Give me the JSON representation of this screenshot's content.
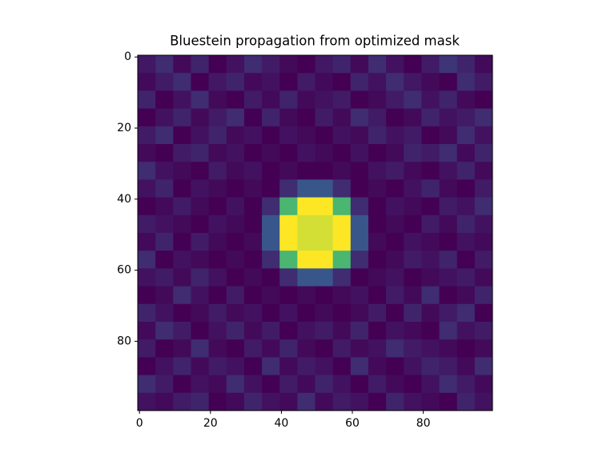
{
  "chart_data": {
    "type": "heatmap",
    "title": "Bluestein propagation from optimized mask",
    "colormap": "viridis",
    "x": [
      2,
      7,
      12,
      17,
      22,
      27,
      32,
      37,
      42,
      47,
      52,
      57,
      62,
      67,
      72,
      77,
      82,
      87,
      92,
      97
    ],
    "y": [
      2,
      7,
      12,
      17,
      22,
      27,
      32,
      37,
      42,
      47,
      52,
      57,
      62,
      67,
      72,
      77,
      82,
      87,
      92,
      97
    ],
    "xlim": [
      -0.5,
      99.5
    ],
    "ylim": [
      99.5,
      -0.5
    ],
    "xticks": [
      0,
      20,
      40,
      60,
      80
    ],
    "yticks": [
      0,
      20,
      40,
      60,
      80
    ],
    "z": [
      [
        0.15,
        0.2,
        0.12,
        0.18,
        0.1,
        0.14,
        0.2,
        0.16,
        0.12,
        0.1,
        0.15,
        0.18,
        0.12,
        0.2,
        0.14,
        0.1,
        0.16,
        0.22,
        0.18,
        0.12
      ],
      [
        0.12,
        0.16,
        0.2,
        0.1,
        0.15,
        0.18,
        0.12,
        0.14,
        0.1,
        0.16,
        0.12,
        0.1,
        0.18,
        0.14,
        0.2,
        0.15,
        0.12,
        0.1,
        0.2,
        0.16
      ],
      [
        0.18,
        0.1,
        0.14,
        0.2,
        0.12,
        0.1,
        0.16,
        0.12,
        0.18,
        0.12,
        0.14,
        0.16,
        0.1,
        0.12,
        0.16,
        0.2,
        0.14,
        0.18,
        0.12,
        0.1
      ],
      [
        0.1,
        0.14,
        0.18,
        0.12,
        0.16,
        0.2,
        0.1,
        0.18,
        0.12,
        0.1,
        0.16,
        0.12,
        0.2,
        0.16,
        0.1,
        0.12,
        0.18,
        0.14,
        0.16,
        0.2
      ],
      [
        0.16,
        0.2,
        0.1,
        0.14,
        0.18,
        0.12,
        0.14,
        0.1,
        0.14,
        0.12,
        0.1,
        0.14,
        0.12,
        0.18,
        0.14,
        0.16,
        0.1,
        0.12,
        0.2,
        0.14
      ],
      [
        0.12,
        0.1,
        0.16,
        0.18,
        0.12,
        0.14,
        0.1,
        0.12,
        0.1,
        0.14,
        0.12,
        0.1,
        0.14,
        0.1,
        0.12,
        0.18,
        0.16,
        0.2,
        0.12,
        0.18
      ],
      [
        0.2,
        0.14,
        0.12,
        0.1,
        0.16,
        0.12,
        0.14,
        0.1,
        0.12,
        0.1,
        0.1,
        0.12,
        0.1,
        0.14,
        0.16,
        0.12,
        0.1,
        0.14,
        0.18,
        0.12
      ],
      [
        0.14,
        0.18,
        0.1,
        0.14,
        0.12,
        0.1,
        0.12,
        0.1,
        0.2,
        0.3,
        0.3,
        0.2,
        0.1,
        0.12,
        0.1,
        0.14,
        0.18,
        0.12,
        0.1,
        0.16
      ],
      [
        0.1,
        0.12,
        0.16,
        0.12,
        0.1,
        0.14,
        0.1,
        0.2,
        0.6,
        0.85,
        0.85,
        0.6,
        0.2,
        0.1,
        0.14,
        0.12,
        0.1,
        0.16,
        0.14,
        0.2
      ],
      [
        0.16,
        0.14,
        0.12,
        0.1,
        0.14,
        0.12,
        0.1,
        0.3,
        0.85,
        0.8,
        0.8,
        0.85,
        0.3,
        0.1,
        0.12,
        0.1,
        0.16,
        0.12,
        0.18,
        0.14
      ],
      [
        0.12,
        0.18,
        0.1,
        0.16,
        0.12,
        0.1,
        0.12,
        0.3,
        0.85,
        0.8,
        0.8,
        0.85,
        0.3,
        0.12,
        0.1,
        0.14,
        0.12,
        0.1,
        0.14,
        0.12
      ],
      [
        0.2,
        0.1,
        0.14,
        0.12,
        0.1,
        0.12,
        0.1,
        0.2,
        0.6,
        0.85,
        0.85,
        0.6,
        0.2,
        0.1,
        0.12,
        0.16,
        0.14,
        0.18,
        0.1,
        0.16
      ],
      [
        0.14,
        0.16,
        0.12,
        0.18,
        0.14,
        0.1,
        0.12,
        0.1,
        0.2,
        0.3,
        0.3,
        0.2,
        0.1,
        0.12,
        0.14,
        0.1,
        0.12,
        0.14,
        0.16,
        0.12
      ],
      [
        0.1,
        0.12,
        0.2,
        0.14,
        0.1,
        0.16,
        0.1,
        0.12,
        0.1,
        0.12,
        0.1,
        0.12,
        0.14,
        0.1,
        0.16,
        0.12,
        0.2,
        0.1,
        0.12,
        0.18
      ],
      [
        0.18,
        0.14,
        0.1,
        0.12,
        0.16,
        0.12,
        0.14,
        0.1,
        0.14,
        0.1,
        0.12,
        0.1,
        0.12,
        0.16,
        0.1,
        0.18,
        0.12,
        0.16,
        0.2,
        0.1
      ],
      [
        0.12,
        0.2,
        0.16,
        0.1,
        0.14,
        0.18,
        0.12,
        0.16,
        0.1,
        0.14,
        0.16,
        0.12,
        0.18,
        0.1,
        0.14,
        0.12,
        0.1,
        0.2,
        0.14,
        0.16
      ],
      [
        0.16,
        0.1,
        0.12,
        0.2,
        0.12,
        0.1,
        0.16,
        0.12,
        0.18,
        0.12,
        0.1,
        0.16,
        0.12,
        0.14,
        0.2,
        0.16,
        0.14,
        0.12,
        0.1,
        0.12
      ],
      [
        0.1,
        0.14,
        0.18,
        0.12,
        0.16,
        0.14,
        0.1,
        0.2,
        0.12,
        0.16,
        0.14,
        0.1,
        0.2,
        0.12,
        0.1,
        0.14,
        0.18,
        0.16,
        0.12,
        0.2
      ],
      [
        0.2,
        0.16,
        0.1,
        0.14,
        0.12,
        0.2,
        0.14,
        0.1,
        0.16,
        0.12,
        0.18,
        0.14,
        0.1,
        0.16,
        0.12,
        0.1,
        0.14,
        0.2,
        0.16,
        0.12
      ],
      [
        0.14,
        0.12,
        0.16,
        0.18,
        0.1,
        0.12,
        0.18,
        0.14,
        0.12,
        0.2,
        0.12,
        0.16,
        0.14,
        0.1,
        0.18,
        0.14,
        0.12,
        0.1,
        0.18,
        0.14
      ]
    ]
  }
}
